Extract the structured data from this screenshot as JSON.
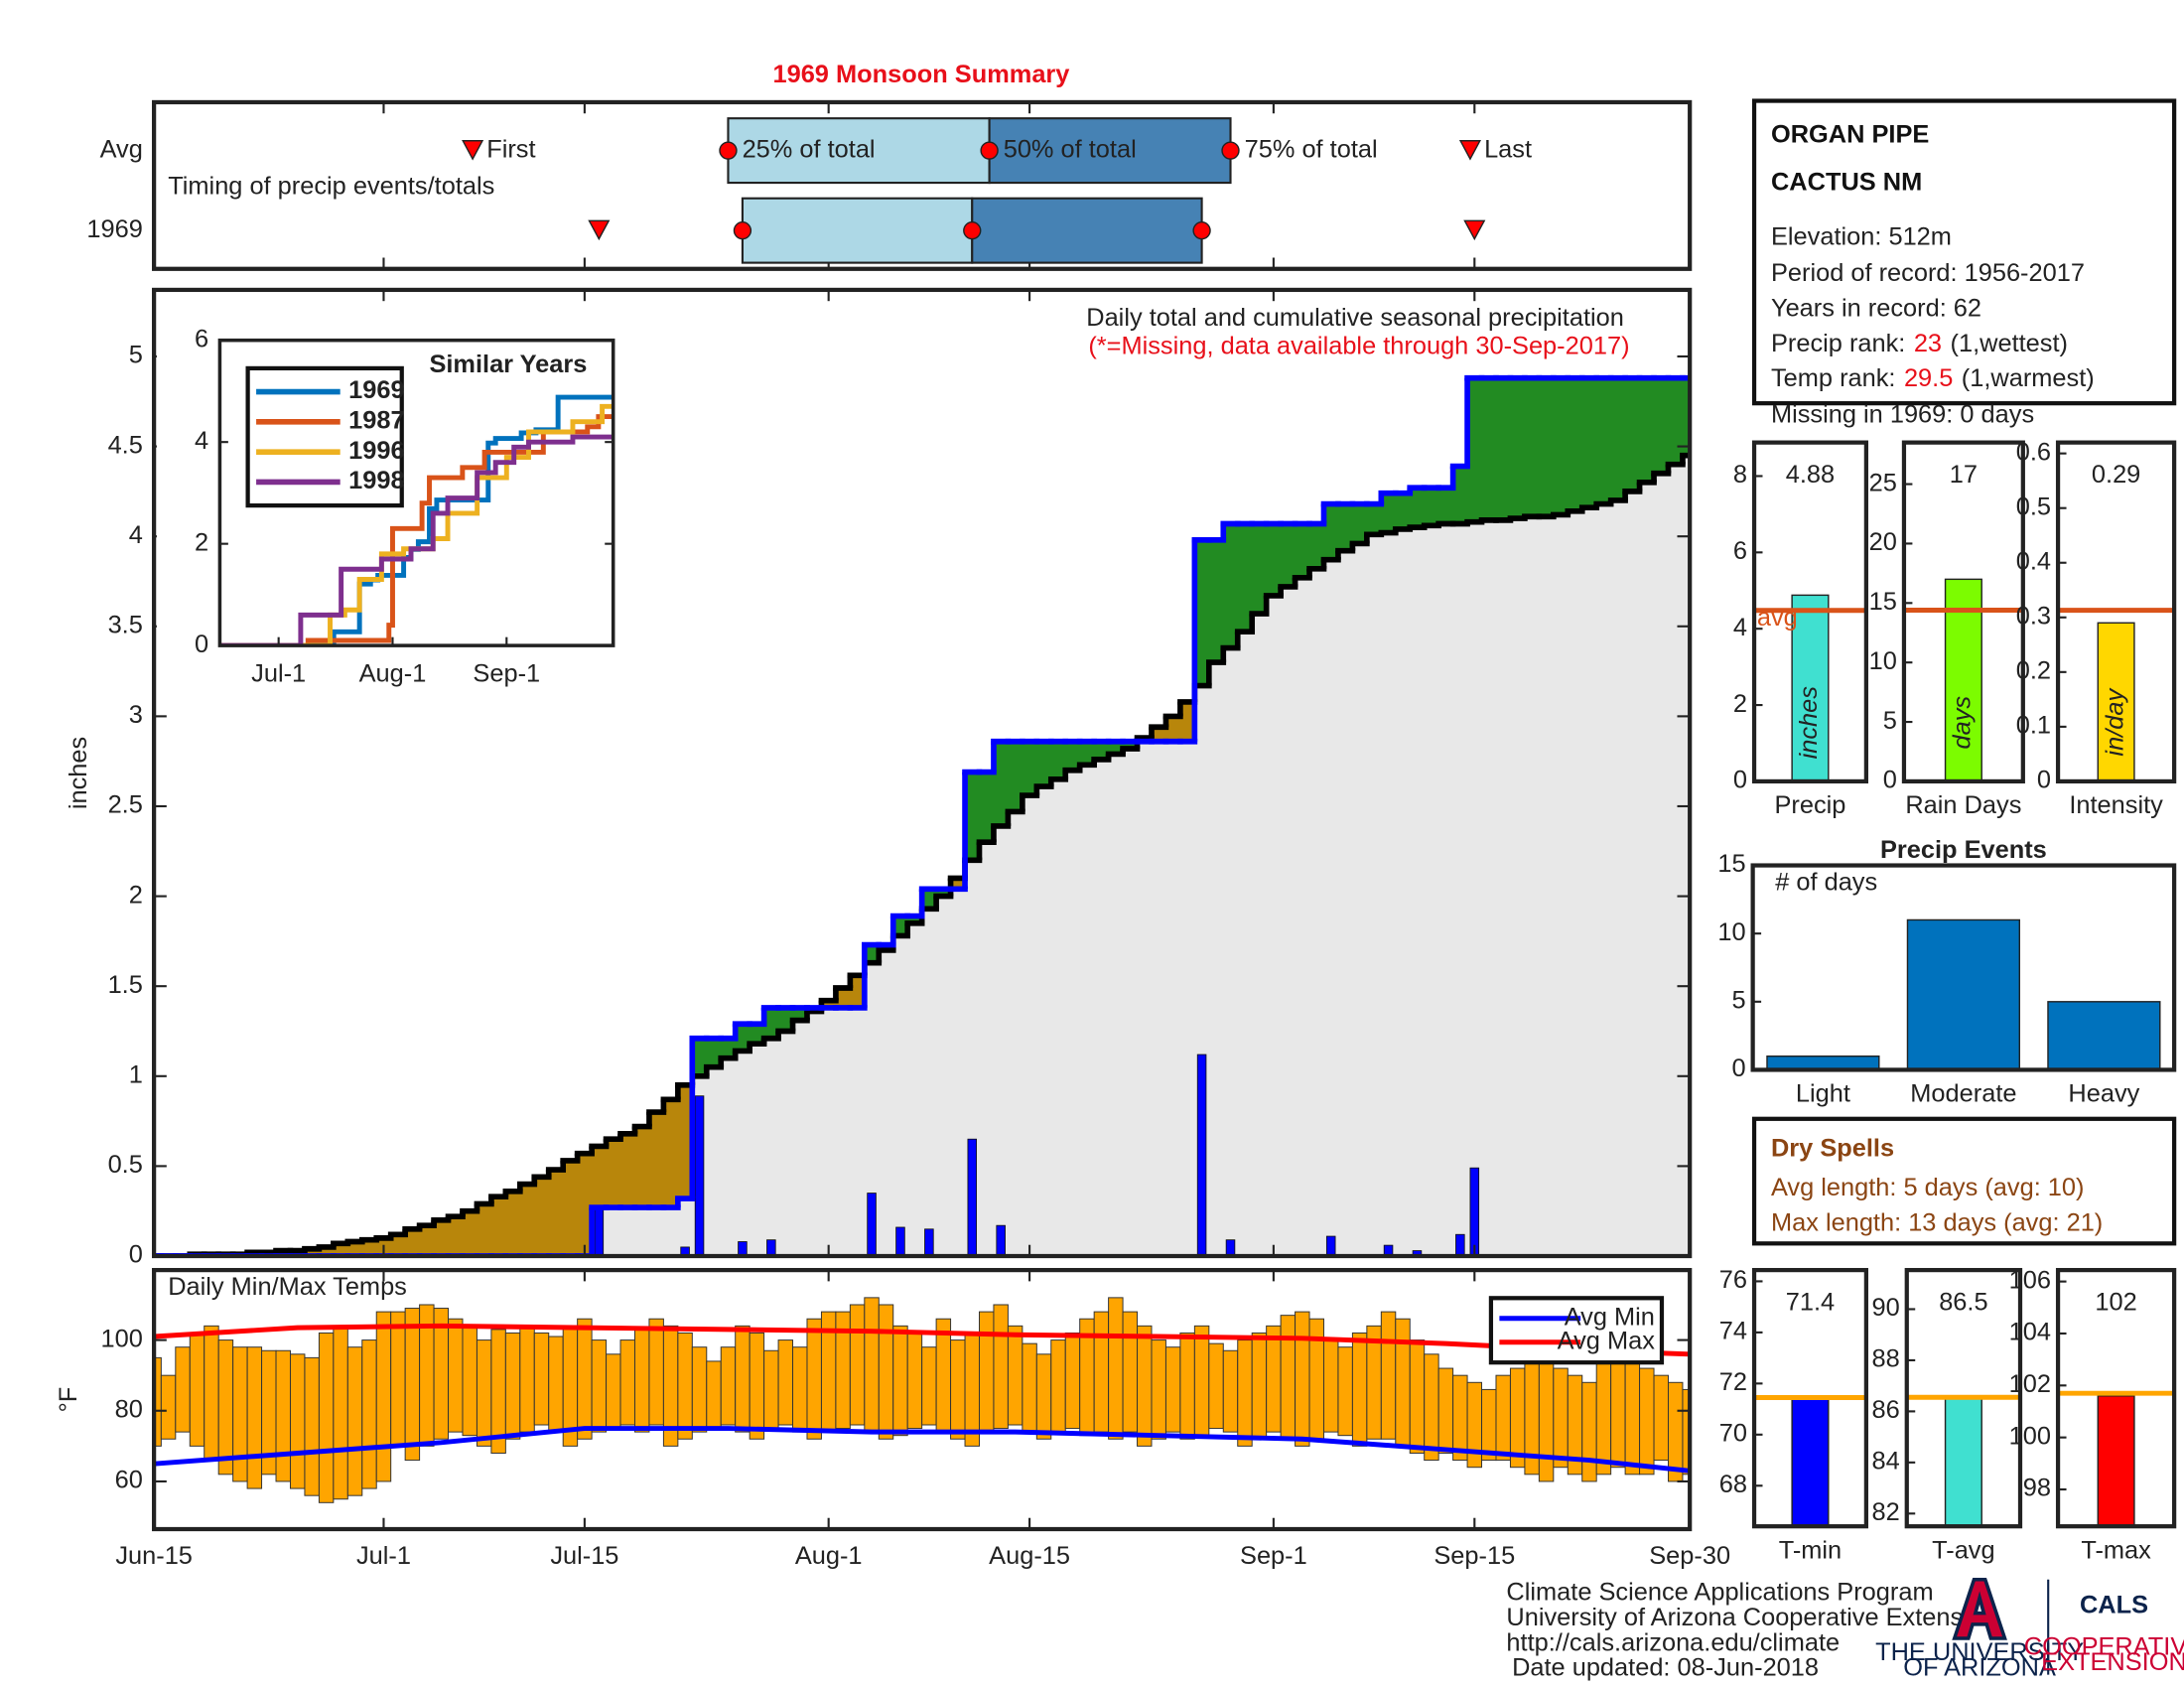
{
  "title": "1969 Monsoon Summary",
  "station": {
    "name_lines": [
      "ORGAN PIPE",
      "CACTUS NM"
    ],
    "elevation": "Elevation: 512m",
    "period": "Period of record: 1956-2017",
    "years": "Years in record: 62",
    "precip_rank": {
      "label": "Precip rank:",
      "value": 23,
      "note": "(1,wettest)"
    },
    "temp_rank": {
      "label": "Temp rank:",
      "value": 29.5,
      "note": "(1,warmest)"
    },
    "missing": "Missing in 1969: 0 days"
  },
  "dry_spells": {
    "title": "Dry Spells",
    "lines": [
      "Avg length: 5 days (avg: 10)",
      "Max length: 13 days (avg: 21)"
    ]
  },
  "footer": [
    "Climate Science Applications Program",
    "University of Arizona Cooperative Extension",
    "http://cals.arizona.edu/climate",
    "Date updated: 08-Jun-2018"
  ],
  "logos": {
    "university": [
      "THE UNIVERSITY",
      "OF ARIZONA"
    ],
    "cals": "CALS",
    "extension": [
      "COOPERATIVE",
      "EXTENSION"
    ]
  },
  "chart_data": [
    {
      "type": "timeline",
      "annotation": "Timing of precip events/totals",
      "event_labels": [
        "First",
        "25% of total",
        "50% of total",
        "75% of total",
        "Last"
      ],
      "rows": [
        {
          "label": "Avg",
          "values": [
            22.2,
            40,
            58.2,
            75,
            91.7
          ]
        },
        {
          "label": "1969",
          "values": [
            31,
            41,
            57,
            73,
            92
          ]
        }
      ],
      "colors": {
        "marker": "#ff0000",
        "early": "#add8e6",
        "late": "#4682b4"
      },
      "xlim": [
        0,
        107
      ]
    },
    {
      "type": "step-area",
      "ylabel": "inches",
      "annotation": "Daily total and cumulative seasonal precipitation",
      "note": "(*=Missing, data available through 30-Sep-2017)",
      "xlim": [
        0,
        107
      ],
      "ylim": [
        0,
        5.37
      ],
      "yticks": [
        0,
        0.5,
        1,
        1.5,
        2,
        2.5,
        3,
        3.5,
        4,
        4.5,
        5
      ],
      "daily": {
        "color": "#0000ff",
        "values": [
          0,
          0,
          0,
          0,
          0,
          0,
          0,
          0,
          0,
          0,
          0,
          0,
          0,
          0,
          0,
          0,
          0,
          0,
          0,
          0,
          0,
          0,
          0,
          0,
          0,
          0,
          0,
          0,
          0,
          0,
          0,
          0.27,
          0,
          0,
          0,
          0,
          0,
          0.05,
          0.89,
          0,
          0,
          0.08,
          0,
          0.09,
          0,
          0,
          0,
          0,
          0,
          0,
          0.35,
          0,
          0.16,
          0,
          0.15,
          0,
          0,
          0.65,
          0,
          0.17,
          0,
          0,
          0,
          0,
          0,
          0,
          0,
          0,
          0,
          0,
          0,
          0,
          0,
          1.12,
          0,
          0.09,
          0,
          0,
          0,
          0,
          0,
          0,
          0.11,
          0,
          0,
          0,
          0.06,
          0,
          0.03,
          0,
          0,
          0.12,
          0.49,
          0,
          0,
          0,
          0,
          0,
          0,
          0,
          0,
          0,
          0,
          0,
          0,
          0,
          0,
          0
        ]
      },
      "average": {
        "color": "#000000",
        "values": [
          0,
          0,
          0,
          0.01,
          0.01,
          0.01,
          0.01,
          0.02,
          0.02,
          0.03,
          0.03,
          0.04,
          0.05,
          0.07,
          0.08,
          0.09,
          0.1,
          0.12,
          0.15,
          0.17,
          0.2,
          0.22,
          0.25,
          0.29,
          0.33,
          0.36,
          0.4,
          0.44,
          0.48,
          0.53,
          0.57,
          0.61,
          0.65,
          0.68,
          0.72,
          0.8,
          0.87,
          0.95,
          1.0,
          1.05,
          1.1,
          1.14,
          1.18,
          1.21,
          1.25,
          1.31,
          1.36,
          1.42,
          1.49,
          1.56,
          1.63,
          1.7,
          1.78,
          1.85,
          1.93,
          2.0,
          2.1,
          2.2,
          2.3,
          2.39,
          2.47,
          2.56,
          2.61,
          2.65,
          2.7,
          2.73,
          2.76,
          2.79,
          2.82,
          2.88,
          2.94,
          3.0,
          3.08,
          3.17,
          3.3,
          3.38,
          3.47,
          3.57,
          3.67,
          3.72,
          3.77,
          3.82,
          3.87,
          3.92,
          3.96,
          4.01,
          4.02,
          4.04,
          4.05,
          4.06,
          4.07,
          4.07,
          4.08,
          4.09,
          4.09,
          4.1,
          4.11,
          4.11,
          4.12,
          4.14,
          4.16,
          4.18,
          4.2,
          4.25,
          4.3,
          4.35,
          4.4,
          4.45
        ]
      },
      "fills": {
        "above": "#228b22",
        "below": "#b8860b",
        "base": "#e8e8e8"
      }
    },
    {
      "type": "line",
      "step": true,
      "title": "Similar Years",
      "legend": "upper left",
      "xlim": [
        0,
        107
      ],
      "ylim": [
        0,
        6
      ],
      "yticks": [
        0,
        2,
        4,
        6
      ],
      "xticks": [
        {
          "value": 16,
          "label": "Jul-1"
        },
        {
          "value": 47,
          "label": "Aug-1"
        },
        {
          "value": 78,
          "label": "Sep-1"
        }
      ],
      "series": [
        {
          "name": "1969",
          "color": "#0072bd",
          "x": [
            0,
            31,
            38,
            41,
            43,
            50,
            52,
            54,
            57,
            59,
            73,
            75,
            82,
            86,
            92,
            107
          ],
          "values": [
            0,
            0.27,
            1.21,
            1.29,
            1.38,
            1.73,
            1.89,
            2.04,
            2.69,
            2.86,
            3.98,
            4.07,
            4.18,
            4.24,
            4.88,
            4.88
          ]
        },
        {
          "name": "1987",
          "color": "#d95319",
          "x": [
            0,
            24,
            46,
            47,
            55,
            57,
            66,
            72,
            88,
            100,
            103,
            107
          ],
          "values": [
            0,
            0.1,
            0.4,
            2.3,
            2.8,
            3.3,
            3.5,
            3.8,
            4.2,
            4.3,
            4.5,
            4.5
          ]
        },
        {
          "name": "1996",
          "color": "#edb120",
          "x": [
            0,
            30,
            34,
            38,
            44,
            50,
            58,
            62,
            70,
            78,
            84,
            96,
            104,
            107
          ],
          "values": [
            0,
            0.6,
            0.7,
            1.3,
            1.8,
            1.9,
            2.1,
            2.6,
            3.3,
            3.7,
            4.2,
            4.4,
            4.7,
            4.7
          ]
        },
        {
          "name": "1998",
          "color": "#7e2f8e",
          "x": [
            0,
            22,
            33,
            44,
            52,
            58,
            62,
            70,
            75,
            80,
            84,
            96,
            107
          ],
          "values": [
            0,
            0.6,
            1.5,
            1.7,
            1.9,
            2.6,
            2.9,
            3.4,
            3.6,
            3.9,
            4.0,
            4.1,
            4.1
          ]
        }
      ]
    },
    {
      "type": "range-bar",
      "annotation": "Daily Min/Max Temps",
      "ylabel": "°F",
      "legend": "upper right",
      "xlim": [
        0,
        107
      ],
      "ylim": [
        46.5,
        119.8
      ],
      "yticks": [
        60,
        80,
        100
      ],
      "xticks": [
        {
          "value": 0,
          "label": "Jun-15"
        },
        {
          "value": 16,
          "label": "Jul-1"
        },
        {
          "value": 30,
          "label": "Jul-15"
        },
        {
          "value": 47,
          "label": "Aug-1"
        },
        {
          "value": 61,
          "label": "Aug-15"
        },
        {
          "value": 78,
          "label": "Sep-1"
        },
        {
          "value": 92,
          "label": "Sep-15"
        },
        {
          "value": 107,
          "label": "Sep-30"
        }
      ],
      "bars": {
        "color": "#ffa500",
        "min": [
          70,
          72,
          74,
          70,
          66,
          62,
          60,
          58,
          62,
          60,
          58,
          56,
          54,
          55,
          56,
          58,
          60,
          70,
          66,
          70,
          72,
          74,
          73,
          70,
          68,
          72,
          74,
          76,
          74,
          70,
          72,
          74,
          75,
          76,
          74,
          76,
          70,
          72,
          74,
          75,
          76,
          74,
          72,
          75,
          76,
          74,
          72,
          74,
          75,
          76,
          74,
          72,
          73,
          75,
          76,
          74,
          72,
          70,
          74,
          75,
          76,
          74,
          72,
          74,
          75,
          73,
          74,
          72,
          74,
          70,
          72,
          74,
          72,
          73,
          75,
          74,
          70,
          72,
          74,
          72,
          70,
          72,
          74,
          73,
          70,
          72,
          72,
          70,
          68,
          66,
          68,
          66,
          64,
          66,
          66,
          64,
          62,
          60,
          64,
          62,
          60,
          62,
          64,
          62,
          62,
          66,
          60,
          62
        ],
        "max": [
          95,
          90,
          98,
          102,
          104,
          100,
          98,
          98,
          97,
          97,
          96,
          95,
          102,
          104,
          98,
          100,
          108,
          108,
          109,
          110,
          109,
          106,
          104,
          100,
          103,
          102,
          104,
          102,
          101,
          104,
          106,
          100,
          96,
          100,
          103,
          106,
          104,
          102,
          98,
          94,
          98,
          104,
          102,
          97,
          100,
          98,
          106,
          108,
          108,
          110,
          112,
          110,
          104,
          102,
          98,
          106,
          100,
          102,
          108,
          110,
          104,
          99,
          96,
          100,
          102,
          106,
          108,
          112,
          108,
          104,
          100,
          98,
          102,
          104,
          99,
          97,
          100,
          102,
          104,
          107,
          108,
          106,
          100,
          98,
          102,
          104,
          108,
          106,
          100,
          96,
          92,
          90,
          88,
          86,
          90,
          92,
          94,
          96,
          92,
          90,
          88,
          94,
          98,
          96,
          92,
          90,
          88,
          86
        ]
      },
      "series": [
        {
          "name": "Avg Min",
          "color": "#0000ff",
          "x": [
            0,
            10,
            20,
            30,
            40,
            50,
            60,
            70,
            80,
            90,
            100,
            107
          ],
          "values": [
            65,
            68,
            71,
            75,
            75,
            74,
            74,
            73,
            72,
            69,
            66,
            63
          ]
        },
        {
          "name": "Avg Max",
          "color": "#ff0000",
          "x": [
            0,
            10,
            20,
            30,
            40,
            50,
            60,
            70,
            80,
            90,
            100,
            107
          ],
          "values": [
            101,
            103.5,
            104,
            103.5,
            103,
            102.5,
            101.5,
            101,
            100.5,
            99,
            97,
            96
          ]
        }
      ]
    },
    {
      "type": "bar",
      "show_values": true,
      "categories": [
        "Precip"
      ],
      "values": [
        4.88
      ],
      "color": "#40e0d0",
      "unit": "inches",
      "average": 4.48,
      "average_color": "#d95319",
      "average_label": "avg",
      "ylim": [
        0,
        8.88
      ],
      "yticks": [
        0,
        2,
        4,
        6,
        8
      ]
    },
    {
      "type": "bar",
      "show_values": true,
      "categories": [
        "Rain Days"
      ],
      "values": [
        17
      ],
      "color": "#7cfc00",
      "unit": "days",
      "average": 14.4,
      "average_color": "#d95319",
      "ylim": [
        0,
        28.5
      ],
      "yticks": [
        0,
        5,
        10,
        15,
        20,
        25
      ]
    },
    {
      "type": "bar",
      "show_values": true,
      "categories": [
        "Intensity"
      ],
      "values": [
        0.29
      ],
      "color": "#ffd700",
      "unit": "in/day",
      "average": 0.313,
      "average_color": "#d95319",
      "ylim": [
        0,
        0.62
      ],
      "yticks": [
        0,
        0.1,
        0.2,
        0.3,
        0.4,
        0.5,
        0.6
      ]
    },
    {
      "type": "bar",
      "title": "Precip Events",
      "annotation": "# of days",
      "categories": [
        "Light",
        "Moderate",
        "Heavy"
      ],
      "values": [
        1,
        11,
        5
      ],
      "color": "#0072bd",
      "ylim": [
        0,
        15
      ],
      "yticks": [
        0,
        5,
        10,
        15
      ]
    },
    {
      "type": "bar",
      "show_values": true,
      "categories": [
        "T-min"
      ],
      "values": [
        71.4
      ],
      "color": "#0000ff",
      "average": 71.45,
      "average_color": "#ffa500",
      "ylim": [
        66.41,
        76.44
      ],
      "yticks": [
        68,
        70,
        72,
        74,
        76
      ]
    },
    {
      "type": "bar",
      "show_values": true,
      "categories": [
        "T-avg"
      ],
      "values": [
        86.5
      ],
      "color": "#40e0d0",
      "average": 86.55,
      "average_color": "#ffa500",
      "ylim": [
        81.5,
        91.53
      ],
      "yticks": [
        82,
        84,
        86,
        88,
        90
      ]
    },
    {
      "type": "bar",
      "show_values": true,
      "categories": [
        "T-max"
      ],
      "values": [
        101.6
      ],
      "value_labels": [
        "102"
      ],
      "color": "#ff0000",
      "average": 101.7,
      "average_color": "#ffa500",
      "ylim": [
        96.58,
        106.44
      ],
      "yticks": [
        98,
        100,
        102,
        104,
        106
      ]
    }
  ]
}
